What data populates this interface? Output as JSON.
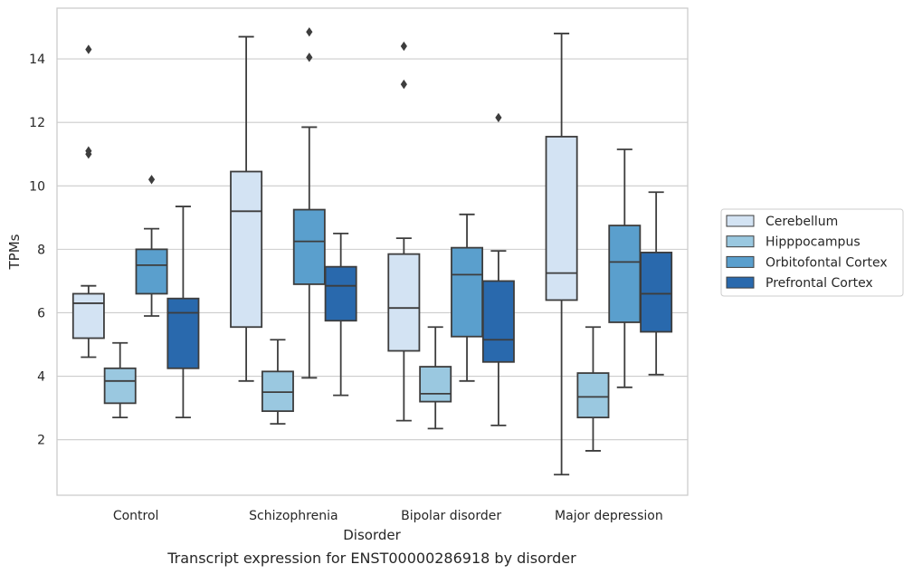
{
  "chart_data": {
    "type": "box",
    "title": "",
    "caption": "Transcript expression for ENST00000286918 by disorder",
    "xlabel": "Disorder",
    "ylabel": "TPMs",
    "ylim": [
      0.25,
      15.6
    ],
    "yticks": [
      2,
      4,
      6,
      8,
      10,
      12,
      14
    ],
    "grid": "horizontal",
    "legend_position": "right",
    "categories": [
      "Control",
      "Schizophrenia",
      "Bipolar disorder",
      "Major depression"
    ],
    "series": [
      {
        "name": "Cerebellum",
        "color": "#d3e3f3",
        "boxes": [
          {
            "whisker_low": 4.6,
            "q1": 5.2,
            "median": 6.3,
            "q3": 6.6,
            "whisker_high": 6.85,
            "outliers": [
              14.3,
              11.1,
              11.0
            ]
          },
          {
            "whisker_low": 3.85,
            "q1": 5.55,
            "median": 9.2,
            "q3": 10.45,
            "whisker_high": 14.7,
            "outliers": []
          },
          {
            "whisker_low": 2.6,
            "q1": 4.8,
            "median": 6.15,
            "q3": 7.85,
            "whisker_high": 8.35,
            "outliers": [
              14.4,
              13.2
            ]
          },
          {
            "whisker_low": 0.9,
            "q1": 6.4,
            "median": 7.25,
            "q3": 11.55,
            "whisker_high": 14.8,
            "outliers": []
          }
        ]
      },
      {
        "name": "Hipppocampus",
        "color": "#9ac8e0",
        "boxes": [
          {
            "whisker_low": 2.7,
            "q1": 3.15,
            "median": 3.85,
            "q3": 4.25,
            "whisker_high": 5.05,
            "outliers": []
          },
          {
            "whisker_low": 2.5,
            "q1": 2.9,
            "median": 3.5,
            "q3": 4.15,
            "whisker_high": 5.15,
            "outliers": []
          },
          {
            "whisker_low": 2.35,
            "q1": 3.2,
            "median": 3.45,
            "q3": 4.3,
            "whisker_high": 5.55,
            "outliers": []
          },
          {
            "whisker_low": 1.65,
            "q1": 2.7,
            "median": 3.35,
            "q3": 4.1,
            "whisker_high": 5.55,
            "outliers": []
          }
        ]
      },
      {
        "name": "Orbitofontal Cortex",
        "color": "#5a9fcd",
        "boxes": [
          {
            "whisker_low": 5.9,
            "q1": 6.6,
            "median": 7.5,
            "q3": 8.0,
            "whisker_high": 8.65,
            "outliers": [
              10.2
            ]
          },
          {
            "whisker_low": 3.95,
            "q1": 6.9,
            "median": 8.25,
            "q3": 9.25,
            "whisker_high": 11.85,
            "outliers": [
              14.85,
              14.05
            ]
          },
          {
            "whisker_low": 3.85,
            "q1": 5.25,
            "median": 7.2,
            "q3": 8.05,
            "whisker_high": 9.1,
            "outliers": []
          },
          {
            "whisker_low": 3.65,
            "q1": 5.7,
            "median": 7.6,
            "q3": 8.75,
            "whisker_high": 11.15,
            "outliers": []
          }
        ]
      },
      {
        "name": "Prefrontal Cortex",
        "color": "#2969ad",
        "boxes": [
          {
            "whisker_low": 2.7,
            "q1": 4.25,
            "median": 6.0,
            "q3": 6.45,
            "whisker_high": 9.35,
            "outliers": []
          },
          {
            "whisker_low": 3.4,
            "q1": 5.75,
            "median": 6.85,
            "q3": 7.45,
            "whisker_high": 8.5,
            "outliers": []
          },
          {
            "whisker_low": 2.45,
            "q1": 4.45,
            "median": 5.15,
            "q3": 7.0,
            "whisker_high": 7.95,
            "outliers": [
              12.15
            ]
          },
          {
            "whisker_low": 4.05,
            "q1": 5.4,
            "median": 6.6,
            "q3": 7.9,
            "whisker_high": 9.8,
            "outliers": []
          }
        ]
      }
    ]
  }
}
